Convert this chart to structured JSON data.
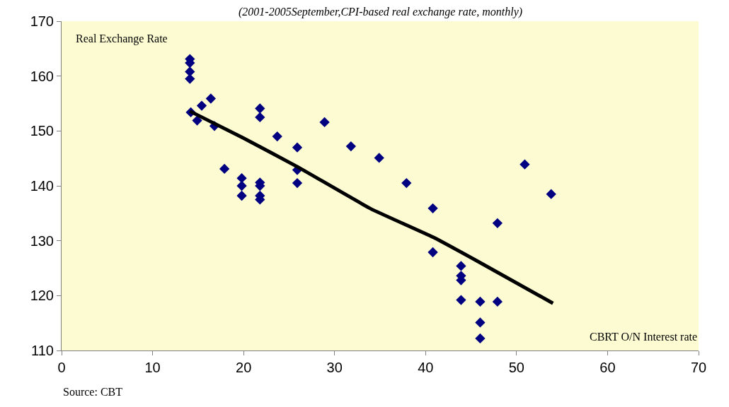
{
  "chart_data": {
    "type": "scatter",
    "subtitle": "(2001-2005September,CPI-based real exchange rate, monthly)",
    "xlabel": "CBRT O/N Interest rate",
    "ylabel": "Real Exchange Rate",
    "annotations": [
      "Source: CBT"
    ],
    "series": [
      {
        "color": "#000080",
        "marker": "diamond",
        "x": [
          14.1,
          14.1,
          14.1,
          14.1,
          14.2,
          14.9,
          15.4,
          16.4,
          16.8,
          17.9,
          19.8,
          19.8,
          19.8,
          21.8,
          21.8,
          21.8,
          21.8,
          21.8,
          21.8,
          23.7,
          25.9,
          25.9,
          25.9,
          28.9,
          31.8,
          34.9,
          37.9,
          40.8,
          40.8,
          43.9,
          43.9,
          43.9,
          43.9,
          46,
          46,
          46,
          47.9,
          47.9,
          50.9,
          53.8
        ],
        "values": [
          163.1,
          162.4,
          160.8,
          159.5,
          153.4,
          151.9,
          154.6,
          155.9,
          150.9,
          143.1,
          141.4,
          140.0,
          138.2,
          154.1,
          152.5,
          140.6,
          140.0,
          138.2,
          137.5,
          149.0,
          147.0,
          142.9,
          140.5,
          151.6,
          147.2,
          145.1,
          140.5,
          135.9,
          127.9,
          125.4,
          123.6,
          122.8,
          119.2,
          118.9,
          115.1,
          112.2,
          118.9,
          133.2,
          143.9,
          138.5
        ]
      },
      {
        "type": "line",
        "color": "#000000",
        "line_style": "solid",
        "marker": "none",
        "x": [
          14.1,
          20,
          26,
          34,
          41,
          46,
          54
        ],
        "values": [
          153.6,
          148.7,
          143.4,
          135.8,
          130.5,
          126.0,
          118.6
        ]
      }
    ],
    "xlim": [
      0,
      70
    ],
    "xticks": [
      0,
      10,
      20,
      30,
      40,
      50,
      60,
      70
    ],
    "ylim": [
      110,
      170
    ],
    "yticks": [
      110,
      120,
      130,
      140,
      150,
      160,
      170
    ],
    "grid": false
  }
}
